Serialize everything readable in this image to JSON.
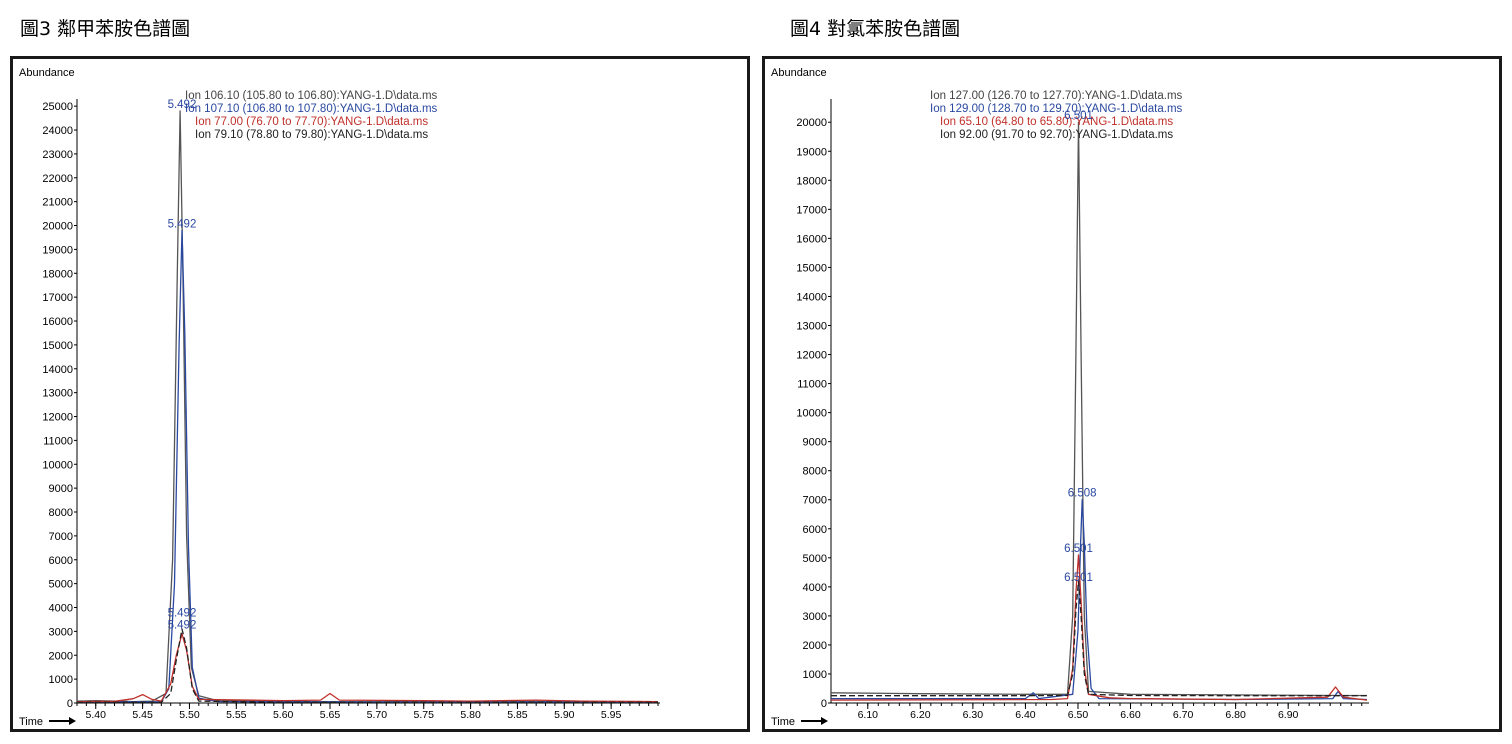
{
  "captions": [
    "圖3 鄰甲苯胺色譜圖",
    "圖4 對氯苯胺色譜圖"
  ],
  "colors": {
    "ion1": "#444444",
    "ion2": "#2a48a0",
    "ion3": "#c0302a",
    "ion4": "#222222"
  },
  "chart_data": [
    {
      "type": "line",
      "title": "",
      "ylabel": "Abundance",
      "xlabel": "Time",
      "xlim": [
        5.38,
        6.0
      ],
      "ylim": [
        0,
        25300
      ],
      "xticks": [
        5.4,
        5.45,
        5.5,
        5.55,
        5.6,
        5.65,
        5.7,
        5.75,
        5.8,
        5.85,
        5.9,
        5.95
      ],
      "xtick_labels": [
        "5.40",
        "5.45",
        "5.50",
        "5.55",
        "5.60",
        "5.65",
        "5.70",
        "5.75",
        "5.80",
        "5.85",
        "5.90",
        "5.95"
      ],
      "yticks": [
        0,
        1000,
        2000,
        3000,
        4000,
        5000,
        6000,
        7000,
        8000,
        9000,
        10000,
        11000,
        12000,
        13000,
        14000,
        15000,
        16000,
        17000,
        18000,
        19000,
        20000,
        21000,
        22000,
        23000,
        24000,
        25000
      ],
      "ytick_labels": [
        "0",
        "1000",
        "2000",
        "3000",
        "4000",
        "5000",
        "6000",
        "7000",
        "8000",
        "9000",
        "10000",
        "11000",
        "12000",
        "13000",
        "14000",
        "15000",
        "16000",
        "17000",
        "18000",
        "19000",
        "20000",
        "21000",
        "22000",
        "23000",
        "24000",
        "25000"
      ],
      "legend": [
        "Ion 106.10 (105.80 to 106.80):YANG-1.D\\data.ms",
        "Ion 107.10 (106.80 to 107.80):YANG-1.D\\data.ms",
        "Ion  77.00 (76.70 to 77.70):YANG-1.D\\data.ms",
        "Ion  79.10 (78.80 to 79.80):YANG-1.D\\data.ms"
      ],
      "series": [
        {
          "color": "#555555",
          "dash": "0",
          "points": [
            [
              5.38,
              80
            ],
            [
              5.4,
              100
            ],
            [
              5.44,
              60
            ],
            [
              5.46,
              80
            ],
            [
              5.475,
              400
            ],
            [
              5.482,
              6000
            ],
            [
              5.487,
              18000
            ],
            [
              5.49,
              24800
            ],
            [
              5.493,
              18000
            ],
            [
              5.497,
              7000
            ],
            [
              5.502,
              1500
            ],
            [
              5.51,
              300
            ],
            [
              5.53,
              100
            ],
            [
              5.6,
              60
            ],
            [
              5.7,
              50
            ],
            [
              5.8,
              70
            ],
            [
              5.9,
              60
            ],
            [
              6.0,
              60
            ]
          ]
        },
        {
          "color": "#2a48a0",
          "dash": "0",
          "points": [
            [
              5.38,
              50
            ],
            [
              5.45,
              50
            ],
            [
              5.47,
              50
            ],
            [
              5.478,
              600
            ],
            [
              5.484,
              5000
            ],
            [
              5.489,
              15000
            ],
            [
              5.492,
              19800
            ],
            [
              5.495,
              15500
            ],
            [
              5.499,
              6500
            ],
            [
              5.503,
              1500
            ],
            [
              5.51,
              200
            ],
            [
              5.53,
              60
            ],
            [
              5.7,
              40
            ],
            [
              5.9,
              40
            ],
            [
              6.0,
              40
            ]
          ]
        },
        {
          "color": "#c0302a",
          "dash": "0",
          "points": [
            [
              5.38,
              60
            ],
            [
              5.42,
              70
            ],
            [
              5.44,
              180
            ],
            [
              5.45,
              350
            ],
            [
              5.46,
              150
            ],
            [
              5.47,
              80
            ],
            [
              5.48,
              800
            ],
            [
              5.486,
              2000
            ],
            [
              5.492,
              2900
            ],
            [
              5.497,
              2200
            ],
            [
              5.503,
              700
            ],
            [
              5.51,
              150
            ],
            [
              5.6,
              100
            ],
            [
              5.64,
              120
            ],
            [
              5.65,
              400
            ],
            [
              5.66,
              120
            ],
            [
              5.75,
              100
            ],
            [
              5.8,
              80
            ],
            [
              5.87,
              120
            ],
            [
              5.92,
              80
            ],
            [
              6.0,
              60
            ]
          ]
        },
        {
          "color": "#222222",
          "dash": "6,3",
          "points": [
            [
              5.38,
              30
            ],
            [
              5.47,
              30
            ],
            [
              5.48,
              400
            ],
            [
              5.486,
              1800
            ],
            [
              5.492,
              3100
            ],
            [
              5.497,
              2300
            ],
            [
              5.503,
              600
            ],
            [
              5.51,
              80
            ],
            [
              5.6,
              30
            ],
            [
              6.0,
              30
            ]
          ]
        }
      ],
      "annotations": [
        {
          "x": 5.492,
          "y": 24800,
          "text": "5.492"
        },
        {
          "x": 5.492,
          "y": 19800,
          "text": "5.492"
        },
        {
          "x": 5.492,
          "y": 3500,
          "text": "5.492"
        },
        {
          "x": 5.492,
          "y": 3000,
          "text": "5.492"
        }
      ]
    },
    {
      "type": "line",
      "title": "",
      "ylabel": "Abundance",
      "xlabel": "Time",
      "xlim": [
        6.03,
        7.05
      ],
      "ylim": [
        0,
        20800
      ],
      "xticks": [
        6.1,
        6.2,
        6.3,
        6.4,
        6.5,
        6.6,
        6.7,
        6.8,
        6.9
      ],
      "xtick_labels": [
        "6.10",
        "6.20",
        "6.30",
        "6.40",
        "6.50",
        "6.60",
        "6.70",
        "6.80",
        "6.90"
      ],
      "yticks": [
        0,
        1000,
        2000,
        3000,
        4000,
        5000,
        6000,
        7000,
        8000,
        9000,
        10000,
        11000,
        12000,
        13000,
        14000,
        15000,
        16000,
        17000,
        18000,
        19000,
        20000
      ],
      "ytick_labels": [
        "0",
        "1000",
        "2000",
        "3000",
        "4000",
        "5000",
        "6000",
        "7000",
        "8000",
        "9000",
        "10000",
        "11000",
        "12000",
        "13000",
        "14000",
        "15000",
        "16000",
        "17000",
        "18000",
        "19000",
        "20000"
      ],
      "legend": [
        "Ion 127.00 (126.70 to 127.70):YANG-1.D\\data.ms",
        "Ion 129.00 (128.70 to 129.70):YANG-1.D\\data.ms",
        "Ion  65.10 (64.80 to 65.80):YANG-1.D\\data.ms",
        "Ion  92.00 (91.70 to 92.70):YANG-1.D\\data.ms"
      ],
      "series": [
        {
          "color": "#555555",
          "dash": "0",
          "points": [
            [
              6.03,
              350
            ],
            [
              6.2,
              320
            ],
            [
              6.4,
              300
            ],
            [
              6.48,
              300
            ],
            [
              6.49,
              3000
            ],
            [
              6.496,
              12000
            ],
            [
              6.501,
              20000
            ],
            [
              6.506,
              12000
            ],
            [
              6.512,
              3000
            ],
            [
              6.52,
              400
            ],
            [
              6.6,
              300
            ],
            [
              6.8,
              280
            ],
            [
              7.0,
              260
            ],
            [
              7.05,
              260
            ]
          ]
        },
        {
          "color": "#2a48a0",
          "dash": "0",
          "points": [
            [
              6.03,
              150
            ],
            [
              6.4,
              150
            ],
            [
              6.415,
              350
            ],
            [
              6.425,
              150
            ],
            [
              6.49,
              300
            ],
            [
              6.5,
              2500
            ],
            [
              6.505,
              5500
            ],
            [
              6.508,
              7000
            ],
            [
              6.512,
              5500
            ],
            [
              6.517,
              2500
            ],
            [
              6.525,
              500
            ],
            [
              6.54,
              150
            ],
            [
              6.8,
              120
            ],
            [
              6.985,
              150
            ],
            [
              6.995,
              400
            ],
            [
              7.005,
              150
            ],
            [
              7.05,
              120
            ]
          ]
        },
        {
          "color": "#c0302a",
          "dash": "0",
          "points": [
            [
              6.03,
              100
            ],
            [
              6.45,
              120
            ],
            [
              6.48,
              150
            ],
            [
              6.49,
              1200
            ],
            [
              6.496,
              3800
            ],
            [
              6.501,
              5100
            ],
            [
              6.506,
              3500
            ],
            [
              6.512,
              1200
            ],
            [
              6.52,
              300
            ],
            [
              6.56,
              180
            ],
            [
              6.6,
              150
            ],
            [
              6.8,
              120
            ],
            [
              6.975,
              200
            ],
            [
              6.99,
              550
            ],
            [
              7.005,
              200
            ],
            [
              7.05,
              100
            ]
          ]
        },
        {
          "color": "#222222",
          "dash": "6,3",
          "points": [
            [
              6.03,
              250
            ],
            [
              6.4,
              250
            ],
            [
              6.48,
              260
            ],
            [
              6.49,
              1000
            ],
            [
              6.496,
              3200
            ],
            [
              6.501,
              4200
            ],
            [
              6.506,
              3000
            ],
            [
              6.512,
              1000
            ],
            [
              6.52,
              300
            ],
            [
              6.6,
              260
            ],
            [
              6.8,
              250
            ],
            [
              7.05,
              250
            ]
          ]
        }
      ],
      "annotations": [
        {
          "x": 6.508,
          "y": 7000,
          "text": "6.508"
        },
        {
          "x": 6.501,
          "y": 5100,
          "text": "6.501"
        },
        {
          "x": 6.501,
          "y": 4100,
          "text": "6.501"
        },
        {
          "x": 6.501,
          "y": 20000,
          "text": "6.501"
        }
      ]
    }
  ]
}
